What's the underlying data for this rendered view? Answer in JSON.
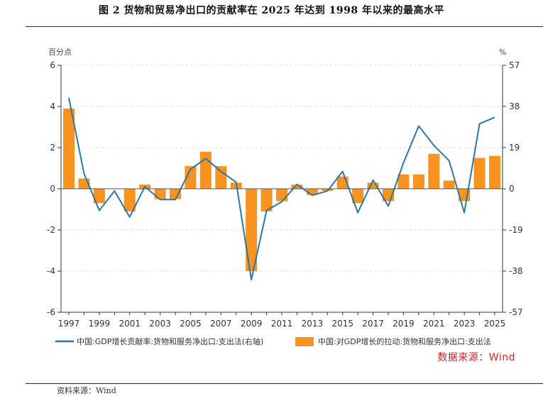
{
  "figure": {
    "title": "图 2   货物和贸易净出口的贡献率在 2025 年达到 1998 年以来的最高水平",
    "source_bottom": "资料来源：Wind"
  },
  "chart_data": {
    "type": "bar+line",
    "title": "",
    "left_axis": {
      "label": "百分点",
      "ylim": [
        -6,
        6
      ],
      "ticks": [
        -6,
        -4,
        -2,
        0,
        2,
        4,
        6
      ]
    },
    "right_axis": {
      "label": "%",
      "ylim": [
        -57,
        57
      ],
      "ticks": [
        -57,
        -38,
        -19,
        0,
        19,
        38,
        57
      ]
    },
    "x_tick_labels": [
      "1997",
      "1999",
      "2001",
      "2003",
      "2005",
      "2007",
      "2009",
      "2011",
      "2013",
      "2015",
      "2017",
      "2019",
      "2021",
      "2023",
      "2025"
    ],
    "years": [
      1997,
      1998,
      1999,
      2000,
      2001,
      2002,
      2003,
      2004,
      2005,
      2006,
      2007,
      2008,
      2009,
      2010,
      2011,
      2012,
      2013,
      2014,
      2015,
      2016,
      2017,
      2018,
      2019,
      2020,
      2021,
      2022,
      2023,
      2024,
      2025
    ],
    "grid": true,
    "series": [
      {
        "name": "中国:对GDP增长的拉动:货物和服务净出口:支出法",
        "type": "bar",
        "axis": "left",
        "color": "#f7931e",
        "values": [
          3.9,
          0.5,
          -0.7,
          0.0,
          -1.1,
          0.2,
          -0.5,
          -0.5,
          1.1,
          1.8,
          1.1,
          0.3,
          -4.0,
          -1.1,
          -0.6,
          0.2,
          -0.3,
          -0.1,
          0.6,
          -0.7,
          0.3,
          -0.6,
          0.7,
          0.7,
          1.7,
          0.4,
          -0.6,
          1.5,
          1.6
        ]
      },
      {
        "name": "中国:GDP增长贡献率:货物和服务净出口:支出法(右轴)",
        "type": "line",
        "axis": "right",
        "color": "#2a77a8",
        "values": [
          42,
          7,
          -10,
          -1,
          -13,
          1,
          -5,
          -5,
          9,
          14,
          8,
          3,
          -42,
          -10,
          -6,
          2,
          -3,
          -1,
          8,
          -11,
          4,
          -8,
          12,
          29,
          20,
          13,
          -11,
          30,
          33
        ]
      }
    ],
    "legend_position": "bottom",
    "source_note": "数据来源：Wind"
  }
}
